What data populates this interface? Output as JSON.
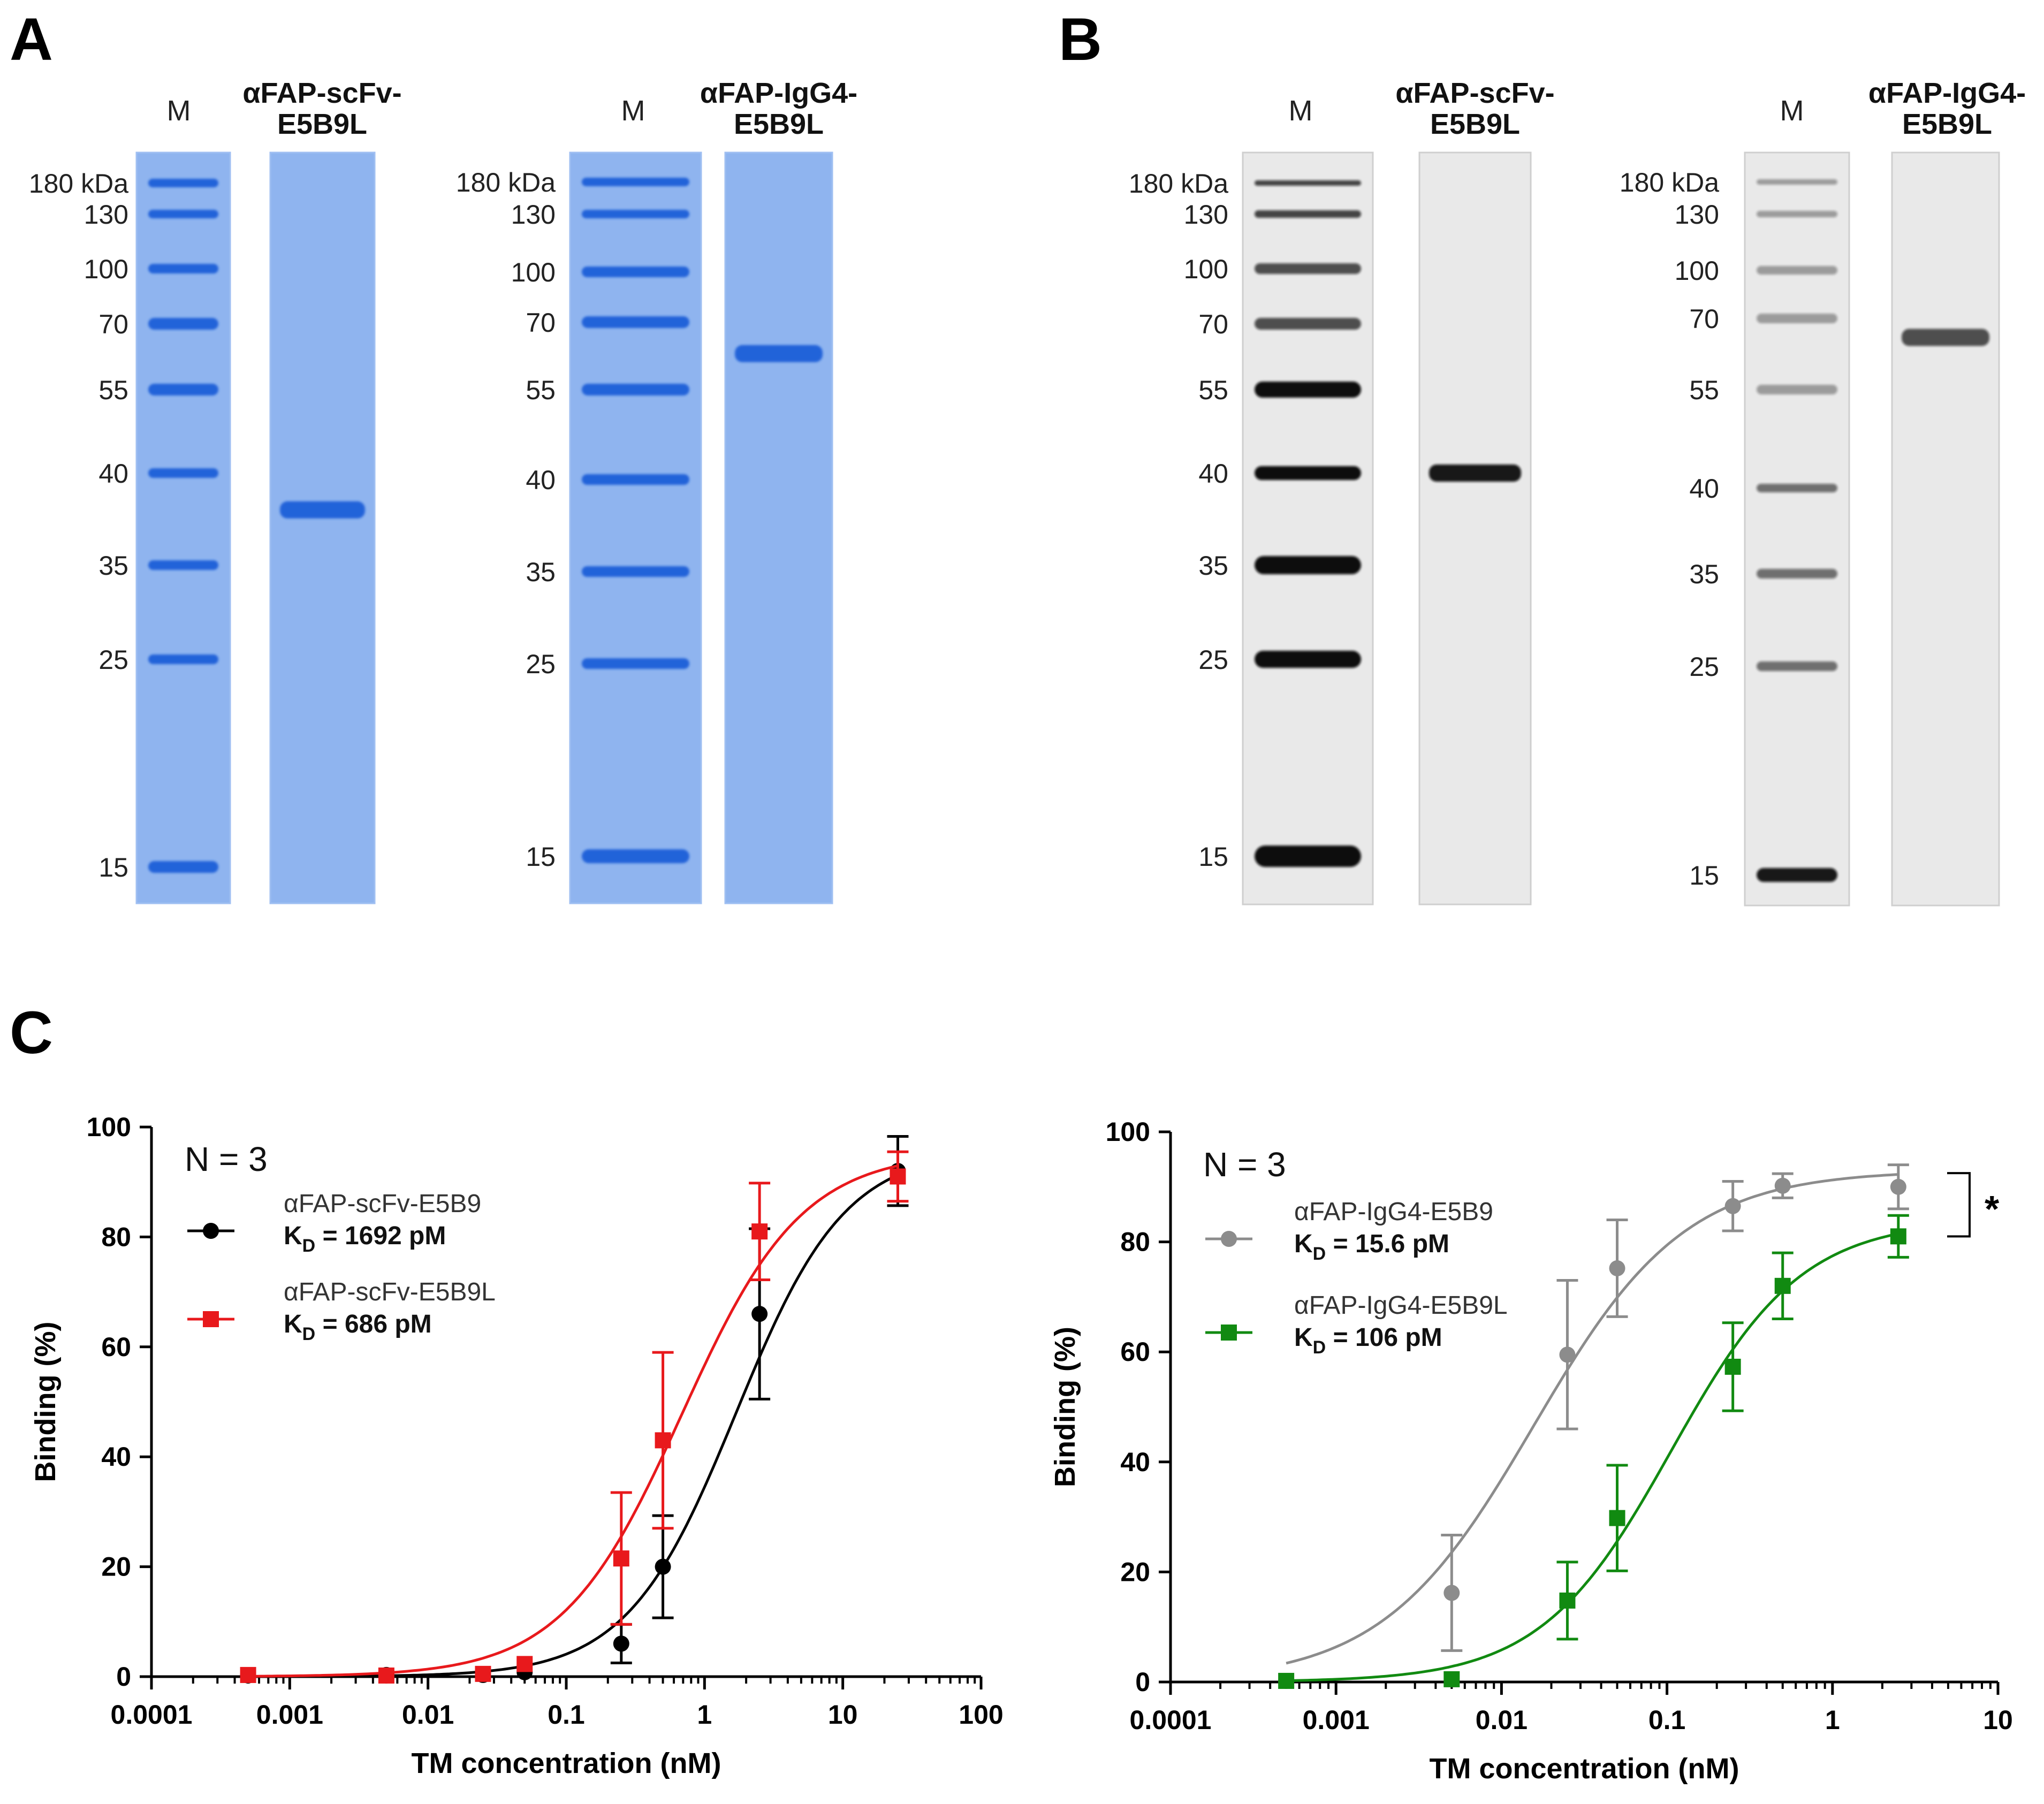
{
  "panels": {
    "A": {
      "letter": "A",
      "gels": [
        {
          "marker_label": "M",
          "sample_title": [
            "αFAP-scFv-",
            "E5B9L"
          ],
          "mw_labels": [
            "180 kDa",
            "130",
            "100",
            "70",
            "55",
            "40",
            "35",
            "25",
            "15"
          ],
          "stain": "coomassie",
          "sample_band_kda": 38
        },
        {
          "marker_label": "M",
          "sample_title": [
            "αFAP-IgG4-",
            "E5B9L"
          ],
          "mw_labels": [
            "180 kDa",
            "130",
            "100",
            "70",
            "55",
            "40",
            "35",
            "25",
            "15"
          ],
          "stain": "coomassie",
          "sample_band_kda": 63
        }
      ]
    },
    "B": {
      "letter": "B",
      "gels": [
        {
          "marker_label": "M",
          "sample_title": [
            "αFAP-scFv-",
            "E5B9L"
          ],
          "mw_labels": [
            "180 kDa",
            "130",
            "100",
            "70",
            "55",
            "40",
            "35",
            "25",
            "15"
          ],
          "stain": "western",
          "sample_band_kda": 40
        },
        {
          "marker_label": "M",
          "sample_title": [
            "αFAP-IgG4-",
            "E5B9L"
          ],
          "mw_labels": [
            "180 kDa",
            "130",
            "100",
            "70",
            "55",
            "40",
            "35",
            "25",
            "15"
          ],
          "stain": "western",
          "sample_band_kda": 66
        }
      ]
    },
    "C": {
      "letter": "C"
    }
  },
  "colors": {
    "coomassie_bg": "#8fb4ef",
    "coomassie_band": "#1f5fd8",
    "western_bg": "#e9e9e9",
    "western_band": "#0d0d0d",
    "black": "#000000",
    "red": "#e8191c",
    "gray": "#8c8c8c",
    "green": "#118a11"
  },
  "chart_data": [
    {
      "type": "scatter",
      "title": "",
      "xlabel": "TM concentration (nM)",
      "ylabel": "Binding (%)",
      "xscale": "log",
      "xlim": [
        0.0001,
        100
      ],
      "ylim": [
        0,
        100
      ],
      "xticks": [
        0.0001,
        0.001,
        0.01,
        0.1,
        1,
        10,
        100
      ],
      "xtick_labels": [
        "0.0001",
        "0.001",
        "0.01",
        "0.1",
        "1",
        "10",
        "100"
      ],
      "yticks": [
        0,
        20,
        40,
        60,
        80,
        100
      ],
      "ytick_labels": [
        "0",
        "20",
        "40",
        "60",
        "80",
        "100"
      ],
      "annotation": "N = 3",
      "series": [
        {
          "name": "αFAP-scFv-E5B9",
          "kd_label": "K",
          "kd_sub": "D",
          "kd_value": " = 1692 pM",
          "color": "#000000",
          "marker": "circle",
          "x": [
            0.0005,
            0.005,
            0.025,
            0.05,
            0.25,
            0.5,
            2.5,
            25
          ],
          "y": [
            0.2,
            0.3,
            0.3,
            0.8,
            6,
            20,
            66,
            92
          ],
          "err": [
            0.5,
            0.5,
            0.5,
            0.7,
            3.5,
            9.3,
            15.5,
            6.3
          ],
          "fit": {
            "top": 96,
            "bottom": 0,
            "ec50": 1.692,
            "hill": 1.1
          }
        },
        {
          "name": "αFAP-scFv-E5B9L",
          "kd_label": "K",
          "kd_sub": "D",
          "kd_value": " = 686 pM",
          "color": "#e8191c",
          "marker": "square",
          "x": [
            0.0005,
            0.005,
            0.025,
            0.05,
            0.25,
            0.5,
            2.5,
            25
          ],
          "y": [
            0.3,
            0.2,
            0.5,
            2.3,
            21.5,
            43,
            81,
            91
          ],
          "err": [
            0.5,
            0.5,
            0.7,
            1.0,
            12,
            16,
            8.8,
            4.5
          ],
          "fit": {
            "top": 95.5,
            "bottom": 0,
            "ec50": 0.686,
            "hill": 1.0
          }
        }
      ]
    },
    {
      "type": "scatter",
      "title": "",
      "xlabel": "TM concentration (nM)",
      "ylabel": "Binding (%)",
      "xscale": "log",
      "xlim": [
        0.0001,
        10
      ],
      "ylim": [
        0,
        100
      ],
      "xticks": [
        0.0001,
        0.001,
        0.01,
        0.1,
        1,
        10
      ],
      "xtick_labels": [
        "0.0001",
        "0.001",
        "0.01",
        "0.1",
        "1",
        "10"
      ],
      "yticks": [
        0,
        20,
        40,
        60,
        80,
        100
      ],
      "ytick_labels": [
        "0",
        "20",
        "40",
        "60",
        "80",
        "100"
      ],
      "annotation": "N = 3",
      "significance": "*",
      "series": [
        {
          "name": "αFAP-IgG4-E5B9",
          "kd_label": "K",
          "kd_sub": "D",
          "kd_value": " = 15.6 pM",
          "color": "#8c8c8c",
          "marker": "circle",
          "x": [
            0.0005,
            0.005,
            0.025,
            0.05,
            0.25,
            0.5,
            2.5
          ],
          "y": [
            0.2,
            16.2,
            59.5,
            75.2,
            86.5,
            90.2,
            90
          ],
          "err": [
            0.5,
            10.5,
            13.5,
            8.8,
            4.5,
            2.2,
            4.0
          ],
          "fit": {
            "top": 93,
            "bottom": 0,
            "ec50": 0.0156,
            "hill": 0.95
          }
        },
        {
          "name": "αFAP-IgG4-E5B9L",
          "kd_label": "K",
          "kd_sub": "D",
          "kd_value": " = 106 pM",
          "color": "#118a11",
          "marker": "square",
          "x": [
            0.0005,
            0.005,
            0.025,
            0.05,
            0.25,
            0.5,
            2.5
          ],
          "y": [
            0.2,
            0.5,
            14.8,
            29.8,
            57.3,
            72,
            81
          ],
          "err": [
            0.5,
            0.5,
            7.0,
            9.6,
            8.0,
            6.0,
            3.8
          ],
          "fit": {
            "top": 84,
            "bottom": 0,
            "ec50": 0.106,
            "hill": 1.1
          }
        }
      ]
    }
  ]
}
